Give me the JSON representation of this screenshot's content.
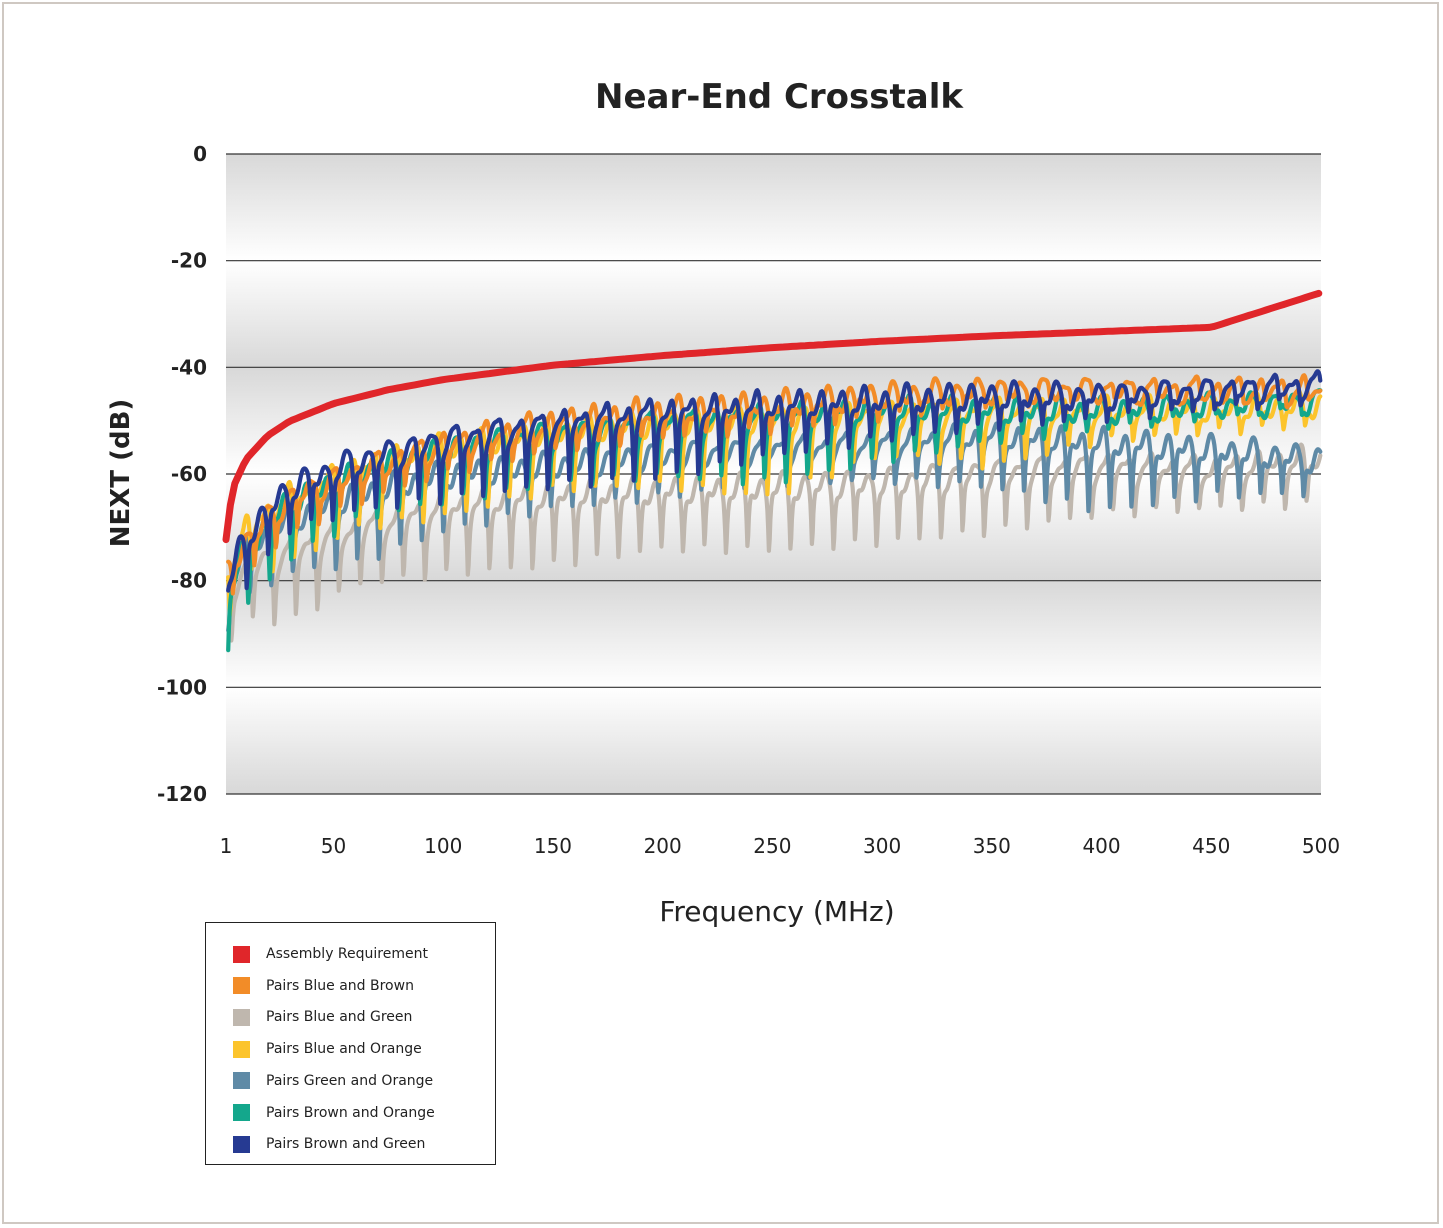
{
  "chart_data": {
    "type": "line",
    "title": "Near-End Crosstalk",
    "xlabel": "Frequency (MHz)",
    "ylabel": "NEXT (dB)",
    "xlim": [
      1,
      500
    ],
    "ylim": [
      -120,
      0
    ],
    "xticks": [
      "1",
      "50",
      "100",
      "150",
      "200",
      "250",
      "300",
      "350",
      "400",
      "450",
      "500"
    ],
    "xtick_values": [
      1,
      50,
      100,
      150,
      200,
      250,
      300,
      350,
      400,
      450,
      500
    ],
    "yticks": [
      "0",
      "-20",
      "-40",
      "-60",
      "-80",
      "-100",
      "-120"
    ],
    "ytick_values": [
      0,
      -20,
      -40,
      -60,
      -80,
      -100,
      -120
    ],
    "grid": "horizontal",
    "legend_position": "bottom-left",
    "series": [
      {
        "name": "Assembly Requirement",
        "color": "#e0262a",
        "x": [
          1,
          2,
          5,
          10,
          20,
          30,
          50,
          75,
          100,
          150,
          200,
          250,
          300,
          350,
          400,
          450,
          500
        ],
        "y": [
          -72.3,
          -67.8,
          -61.8,
          -57.3,
          -52.8,
          -50.1,
          -46.8,
          -44.2,
          -42.3,
          -39.6,
          -37.8,
          -36.3,
          -35.1,
          -34.1,
          -33.3,
          -32.5,
          -26.0
        ]
      },
      {
        "name": "Pairs Blue and Brown",
        "color": "#f28c28",
        "x": [
          2,
          10,
          30,
          60,
          100,
          150,
          200,
          250,
          300,
          350,
          400,
          450,
          500
        ],
        "y": [
          -76,
          -70,
          -62,
          -57,
          -52,
          -48,
          -46,
          -45,
          -43,
          -42,
          -42,
          -42,
          -42
        ],
        "dip_depth": [
          8,
          8,
          9,
          8,
          7,
          6,
          5,
          5,
          5,
          4,
          3,
          3,
          3
        ]
      },
      {
        "name": "Pairs Blue and Green",
        "color": "#bfb7ae",
        "x": [
          2,
          10,
          30,
          60,
          100,
          150,
          200,
          250,
          300,
          350,
          400,
          450,
          500
        ],
        "y": [
          -80,
          -75,
          -72,
          -68,
          -64,
          -62,
          -61,
          -60,
          -59,
          -57,
          -56,
          -57,
          -55
        ],
        "dip_depth": [
          12,
          12,
          16,
          12,
          14,
          14,
          12,
          14,
          14,
          14,
          11,
          8,
          9
        ]
      },
      {
        "name": "Pairs Blue and Orange",
        "color": "#fcc42c",
        "x": [
          2,
          10,
          30,
          60,
          100,
          150,
          200,
          250,
          300,
          350,
          400,
          450,
          500
        ],
        "y": [
          -74,
          -68,
          -62,
          -57,
          -53,
          -50,
          -48,
          -47,
          -46,
          -46,
          -46,
          -46,
          -45
        ],
        "dip_depth": [
          12,
          10,
          14,
          12,
          14,
          12,
          14,
          18,
          10,
          12,
          6,
          4,
          4
        ]
      },
      {
        "name": "Pairs Green and Orange",
        "color": "#5f8aa6",
        "x": [
          2,
          10,
          30,
          60,
          100,
          150,
          200,
          250,
          300,
          350,
          400,
          450,
          500
        ],
        "y": [
          -79,
          -72,
          -67,
          -62,
          -58,
          -56,
          -54,
          -53,
          -52,
          -51,
          -52,
          -53,
          -55
        ],
        "dip_depth": [
          8,
          10,
          10,
          14,
          12,
          10,
          10,
          8,
          8,
          10,
          14,
          10,
          8
        ]
      },
      {
        "name": "Pairs Brown and Orange",
        "color": "#14a78c",
        "x": [
          2,
          10,
          30,
          60,
          100,
          150,
          200,
          250,
          300,
          350,
          400,
          450,
          500
        ],
        "y": [
          -80,
          -72,
          -63,
          -58,
          -53,
          -50,
          -48,
          -47,
          -46,
          -46,
          -46,
          -45,
          -44
        ],
        "dip_depth": [
          22,
          12,
          12,
          10,
          12,
          12,
          12,
          14,
          10,
          6,
          4,
          3,
          3
        ]
      },
      {
        "name": "Pairs Brown and Green",
        "color": "#263a92",
        "x": [
          2,
          10,
          30,
          60,
          100,
          150,
          200,
          250,
          300,
          350,
          400,
          450,
          500
        ],
        "y": [
          -78,
          -69,
          -60,
          -55,
          -51,
          -48,
          -46,
          -45,
          -44,
          -43,
          -43,
          -42,
          -41
        ],
        "dip_depth": [
          10,
          12,
          10,
          12,
          14,
          14,
          14,
          10,
          8,
          7,
          6,
          5,
          4
        ]
      }
    ]
  }
}
